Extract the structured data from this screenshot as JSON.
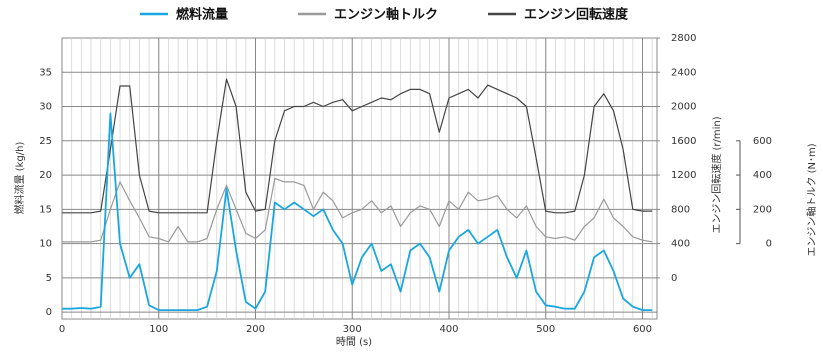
{
  "chart_data": {
    "type": "line",
    "legend_position": "top",
    "x_label": "時間 (s)",
    "y_label": "燃料流量 (kg/h)",
    "y2_label": "エンジン回転速度 (r/min)",
    "y3_label": "エンジン軸トルク (N･m)",
    "grid": true,
    "x_minor_grid_step": 10,
    "xlim": [
      0,
      615
    ],
    "xticks": [
      0,
      100,
      200,
      300,
      400,
      500,
      600
    ],
    "ylim": [
      -1,
      40
    ],
    "yticks": [
      0,
      5,
      10,
      15,
      20,
      25,
      30,
      35
    ],
    "y2lim": [
      -480,
      2800
    ],
    "y2ticks": [
      0,
      400,
      800,
      1200,
      1600,
      2000,
      2400,
      2800
    ],
    "y3lim": [
      -440,
      1200
    ],
    "y3ticks": [
      0,
      200,
      400,
      600
    ],
    "x": [
      0,
      10,
      20,
      30,
      40,
      50,
      60,
      70,
      80,
      90,
      100,
      110,
      120,
      130,
      140,
      150,
      160,
      170,
      180,
      190,
      200,
      210,
      220,
      230,
      240,
      250,
      260,
      270,
      280,
      290,
      300,
      310,
      320,
      330,
      340,
      350,
      360,
      370,
      380,
      390,
      400,
      410,
      420,
      430,
      440,
      450,
      460,
      470,
      480,
      490,
      500,
      510,
      520,
      530,
      540,
      550,
      560,
      570,
      580,
      590,
      600,
      610
    ],
    "series": [
      {
        "name": "燃料流量",
        "color": "#1aa7e0",
        "values": [
          0.5,
          0.5,
          0.6,
          0.5,
          0.8,
          29,
          10,
          5,
          7,
          1,
          0.3,
          0.3,
          0.3,
          0.3,
          0.3,
          0.8,
          6,
          18,
          9,
          1.5,
          0.5,
          3,
          16,
          15,
          16,
          15,
          14,
          15,
          12,
          10,
          4,
          8,
          10,
          6,
          7,
          3,
          9,
          10,
          8,
          3,
          9,
          11,
          12,
          10,
          11,
          12,
          8,
          5,
          9,
          3,
          1,
          0.8,
          0.5,
          0.5,
          3,
          8,
          9,
          6,
          2,
          0.8,
          0.3,
          0.3
        ]
      },
      {
        "name": "エンジン軸トルク",
        "color": "#9a9a9a",
        "axis": "y3",
        "values": [
          10,
          10,
          10,
          10,
          20,
          200,
          360,
          250,
          150,
          40,
          30,
          10,
          100,
          10,
          10,
          30,
          200,
          340,
          200,
          60,
          30,
          80,
          380,
          360,
          360,
          340,
          200,
          300,
          250,
          150,
          180,
          200,
          250,
          180,
          220,
          100,
          180,
          220,
          200,
          100,
          250,
          200,
          300,
          250,
          260,
          280,
          200,
          150,
          220,
          100,
          40,
          30,
          40,
          20,
          100,
          150,
          260,
          150,
          100,
          40,
          20,
          10
        ]
      },
      {
        "name": "エンジン回転速度",
        "color": "#444444",
        "axis": "y2",
        "values": [
          760,
          760,
          760,
          760,
          780,
          1500,
          2240,
          2240,
          1200,
          780,
          760,
          760,
          760,
          760,
          760,
          760,
          1600,
          2320,
          2000,
          1000,
          780,
          800,
          1600,
          1950,
          2000,
          2000,
          2050,
          2000,
          2050,
          2080,
          1950,
          2000,
          2050,
          2100,
          2080,
          2150,
          2200,
          2200,
          2150,
          1700,
          2100,
          2150,
          2200,
          2100,
          2250,
          2200,
          2150,
          2100,
          2000,
          1400,
          780,
          760,
          760,
          780,
          1200,
          2000,
          2150,
          1950,
          1500,
          800,
          780,
          780
        ]
      }
    ]
  }
}
